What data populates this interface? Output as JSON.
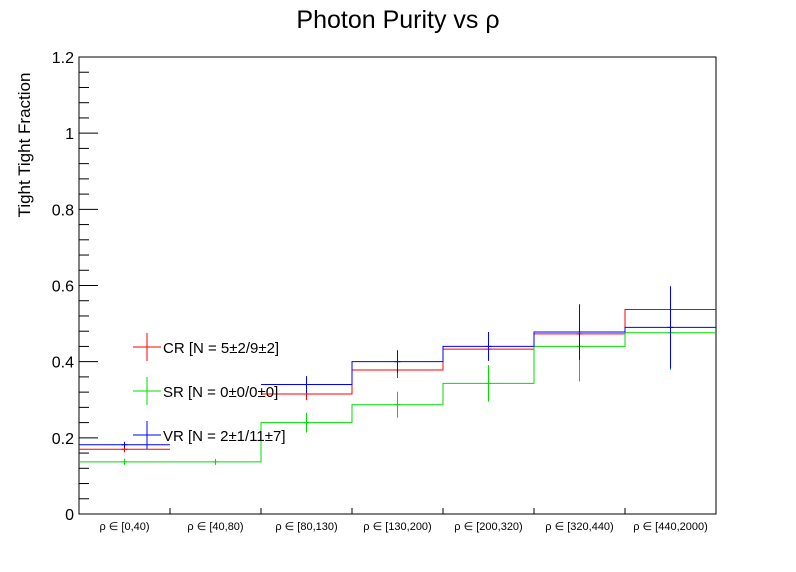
{
  "chart_data": {
    "type": "step",
    "title": "Photon Purity vs  ρ",
    "ylabel": "Tight Tight Fraction",
    "xlabel": "",
    "ylim": [
      0,
      1.2
    ],
    "yticks": [
      {
        "v": 0,
        "label": "0"
      },
      {
        "v": 0.2,
        "label": "0.2"
      },
      {
        "v": 0.4,
        "label": "0.4"
      },
      {
        "v": 0.6,
        "label": "0.6"
      },
      {
        "v": 0.8,
        "label": "0.8"
      },
      {
        "v": 1.0,
        "label": "1"
      },
      {
        "v": 1.2,
        "label": "1.2"
      }
    ],
    "categories": [
      "ρ ∈ [0,40)",
      "ρ ∈ [40,80)",
      "ρ ∈ [80,130)",
      "ρ ∈ [130,200)",
      "ρ ∈ [200,320)",
      "ρ ∈ [320,440)",
      "ρ ∈ [440,2000)"
    ],
    "series": [
      {
        "name": "CR [N = 5±2/9±2]",
        "color": "#ff0000",
        "values": [
          0.17,
          null,
          0.315,
          0.378,
          0.433,
          0.473,
          0.537
        ],
        "errors": [
          0.0,
          null,
          0.008,
          0.013,
          0.015,
          0.02,
          0.025
        ]
      },
      {
        "name": "SR [N = 0±0/0±0]",
        "color": "#00dd00",
        "values": [
          0.137,
          0.137,
          0.24,
          0.287,
          0.343,
          0.44,
          0.476
        ],
        "errors": [
          0.0,
          0.0,
          0.018,
          0.026,
          0.04,
          0.084,
          0.09
        ]
      },
      {
        "name": "VR [N = 2±1/11±7]",
        "color": "#0000ff",
        "values": [
          0.182,
          null,
          0.34,
          0.4,
          0.44,
          0.478,
          0.49
        ],
        "errors": [
          0.0,
          null,
          0.014,
          0.022,
          0.03,
          0.065,
          0.1
        ]
      }
    ],
    "legend": "left"
  }
}
